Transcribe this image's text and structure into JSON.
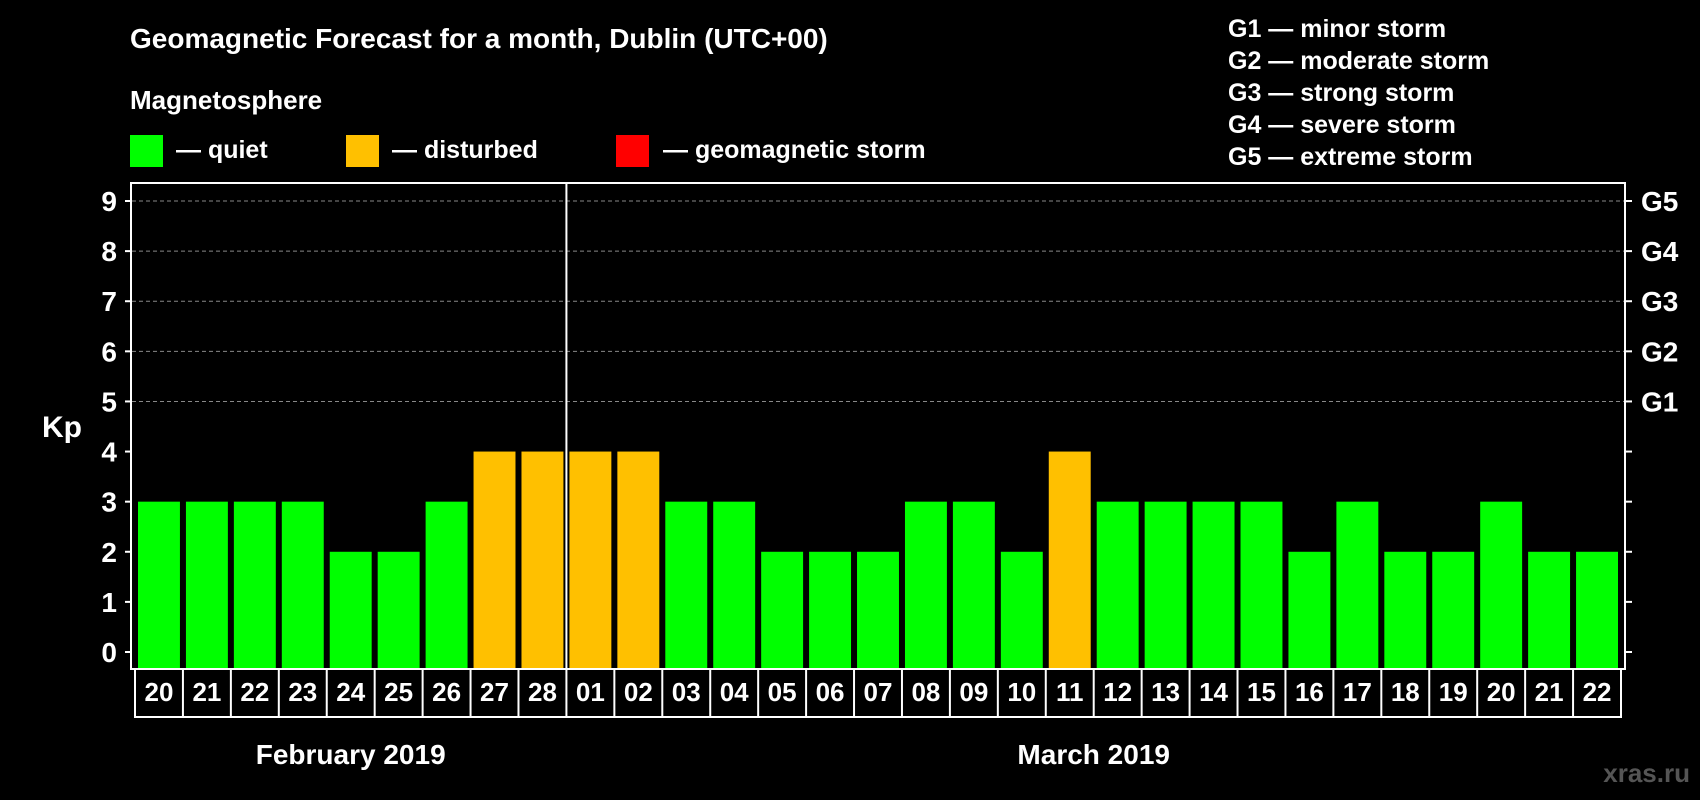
{
  "chart_data": {
    "type": "bar",
    "title": "Geomagnetic Forecast for a month, Dublin (UTC+00)",
    "legend_title": "Magnetosphere",
    "legend": [
      {
        "label": "— quiet",
        "color": "#00ff00"
      },
      {
        "label": "— disturbed",
        "color": "#ffc000"
      },
      {
        "label": "— geomagnetic storm",
        "color": "#ff0000"
      }
    ],
    "storm_scale": [
      "G1 — minor storm",
      "G2 — moderate storm",
      "G3 — strong storm",
      "G4 — severe storm",
      "G5 — extreme storm"
    ],
    "ylabel": "Kp",
    "ylim": [
      0,
      9
    ],
    "yticks": [
      "0",
      "1",
      "2",
      "3",
      "4",
      "5",
      "6",
      "7",
      "8",
      "9"
    ],
    "right_ticks": [
      {
        "value": 5,
        "label": "G1"
      },
      {
        "value": 6,
        "label": "G2"
      },
      {
        "value": 7,
        "label": "G3"
      },
      {
        "value": 8,
        "label": "G4"
      },
      {
        "value": 9,
        "label": "G5"
      }
    ],
    "categories": [
      "20",
      "21",
      "22",
      "23",
      "24",
      "25",
      "26",
      "27",
      "28",
      "01",
      "02",
      "03",
      "04",
      "05",
      "06",
      "07",
      "08",
      "09",
      "10",
      "11",
      "12",
      "13",
      "14",
      "15",
      "16",
      "17",
      "18",
      "19",
      "20",
      "21",
      "22"
    ],
    "values": [
      3,
      3,
      3,
      3,
      2,
      2,
      3,
      4,
      4,
      4,
      4,
      3,
      3,
      2,
      2,
      2,
      3,
      3,
      2,
      4,
      3,
      3,
      3,
      3,
      2,
      3,
      2,
      2,
      3,
      2,
      2
    ],
    "status": [
      "quiet",
      "quiet",
      "quiet",
      "quiet",
      "quiet",
      "quiet",
      "quiet",
      "disturbed",
      "disturbed",
      "disturbed",
      "disturbed",
      "quiet",
      "quiet",
      "quiet",
      "quiet",
      "quiet",
      "quiet",
      "quiet",
      "quiet",
      "disturbed",
      "quiet",
      "quiet",
      "quiet",
      "quiet",
      "quiet",
      "quiet",
      "quiet",
      "quiet",
      "quiet",
      "quiet",
      "quiet"
    ],
    "status_colors": {
      "quiet": "#00ff00",
      "disturbed": "#ffc000",
      "storm": "#ff0000"
    },
    "months": [
      {
        "label": "February 2019",
        "start_index": 0,
        "count": 9
      },
      {
        "label": "March 2019",
        "start_index": 9,
        "count": 22
      }
    ],
    "month_divider_after_index": 8,
    "grid": "dashed at Kp 5–9"
  },
  "watermark": "xras.ru"
}
